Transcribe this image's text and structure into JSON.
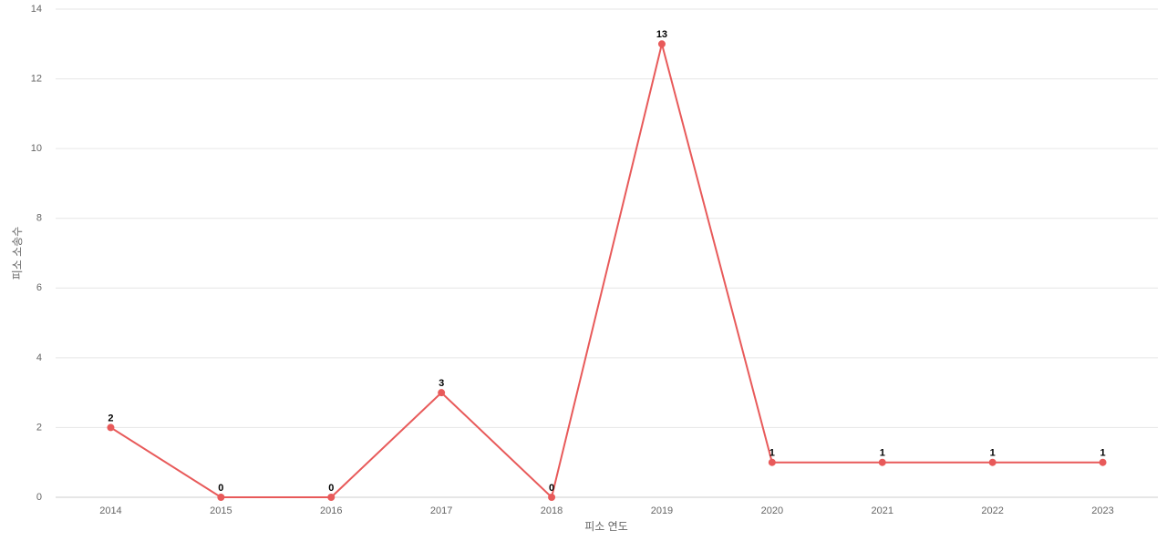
{
  "chart_data": {
    "type": "line",
    "x_label": "피소 연도",
    "y_label": "피소 소송수",
    "categories": [
      "2014",
      "2015",
      "2016",
      "2017",
      "2018",
      "2019",
      "2020",
      "2021",
      "2022",
      "2023"
    ],
    "values": [
      2,
      0,
      0,
      3,
      0,
      13,
      1,
      1,
      1,
      1
    ],
    "color": "#e85a5a",
    "ylim": [
      0,
      14
    ],
    "yticks": [
      0,
      2,
      4,
      6,
      8,
      10,
      12,
      14
    ],
    "grid": true,
    "data_labels": true
  }
}
